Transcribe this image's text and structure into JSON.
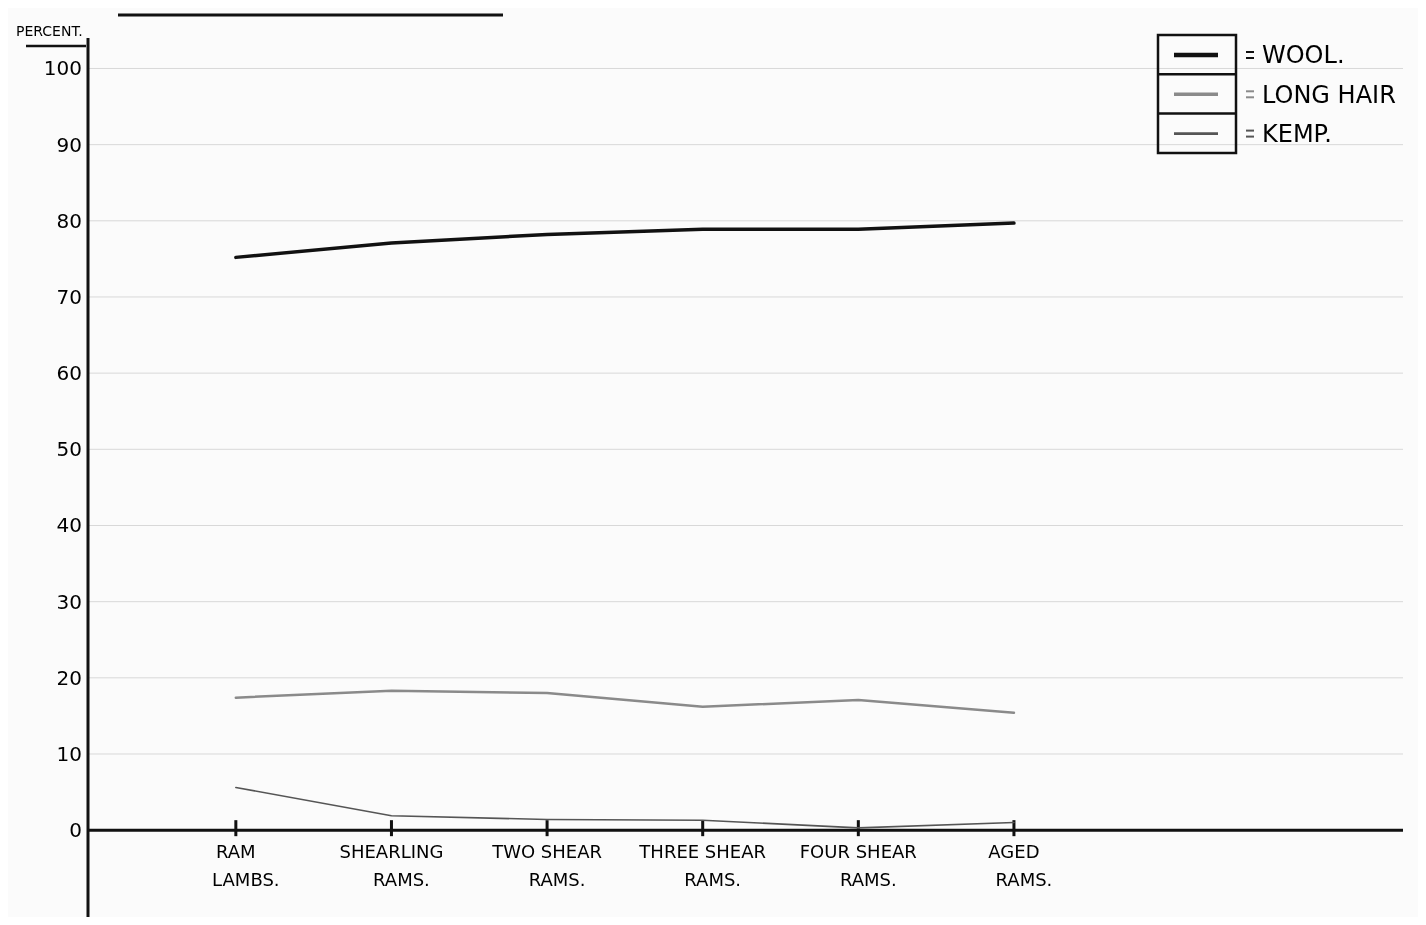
{
  "chart_data": {
    "type": "line",
    "ylabel": "PERCENT.",
    "categories": [
      "RAM LAMBS.",
      "SHEARLING RAMS.",
      "TWO SHEAR RAMS.",
      "THREE SHEAR RAMS.",
      "FOUR SHEAR RAMS.",
      "AGED RAMS."
    ],
    "series": [
      {
        "name": "WOOL.",
        "color": "#111111",
        "values": [
          75.2,
          77.1,
          78.2,
          78.9,
          78.9,
          79.7
        ]
      },
      {
        "name": "LONG HAIR",
        "color": "#8a8a8a",
        "values": [
          17.4,
          18.3,
          18.0,
          16.2,
          17.1,
          15.4
        ]
      },
      {
        "name": "KEMP.",
        "color": "#555555",
        "values": [
          5.6,
          1.9,
          1.4,
          1.3,
          0.3,
          1.0
        ]
      }
    ],
    "ylim": [
      -11.4,
      104
    ],
    "yticks": [
      0,
      10,
      20,
      30,
      40,
      50,
      60,
      70,
      80,
      90,
      100
    ],
    "grid": "y",
    "legend": "top right",
    "marker": "none",
    "line_style": "solid"
  }
}
